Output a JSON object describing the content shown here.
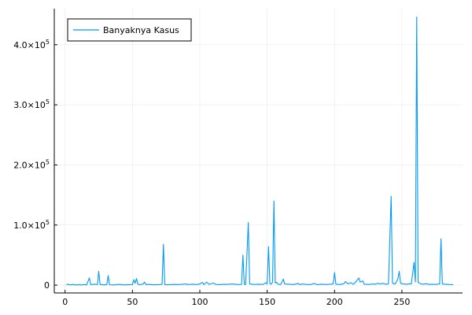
{
  "chart_data": {
    "type": "line",
    "xlim": [
      -8,
      295
    ],
    "ylim": [
      -13000,
      460000
    ],
    "grid": true,
    "legend_position": "top-left",
    "x_ticks": [
      0,
      50,
      100,
      150,
      200,
      250
    ],
    "x_tick_labels": [
      "0",
      "50",
      "100",
      "150",
      "200",
      "250"
    ],
    "y_ticks": [
      0,
      100000,
      200000,
      300000,
      400000
    ],
    "y_tick_labels": [
      {
        "mantissa": "0",
        "exponent": ""
      },
      {
        "mantissa": "1.0×10",
        "exponent": "5"
      },
      {
        "mantissa": "2.0×10",
        "exponent": "5"
      },
      {
        "mantissa": "3.0×10",
        "exponent": "5"
      },
      {
        "mantissa": "4.0×10",
        "exponent": "5"
      }
    ],
    "series": [
      {
        "name": "Banyaknya Kasus",
        "color": "#009af9",
        "points": [
          [
            1,
            500
          ],
          [
            2,
            1500
          ],
          [
            4,
            300
          ],
          [
            6,
            1200
          ],
          [
            8,
            200
          ],
          [
            10,
            800
          ],
          [
            12,
            400
          ],
          [
            14,
            1000
          ],
          [
            16,
            300
          ],
          [
            18,
            12000
          ],
          [
            19,
            800
          ],
          [
            22,
            1500
          ],
          [
            24,
            900
          ],
          [
            25,
            23000
          ],
          [
            26,
            1200
          ],
          [
            28,
            500
          ],
          [
            30,
            800
          ],
          [
            31,
            700
          ],
          [
            32,
            16000
          ],
          [
            33,
            600
          ],
          [
            36,
            400
          ],
          [
            40,
            1200
          ],
          [
            44,
            300
          ],
          [
            48,
            800
          ],
          [
            50,
            1000
          ],
          [
            51,
            9000
          ],
          [
            52,
            3000
          ],
          [
            53,
            11000
          ],
          [
            54,
            1500
          ],
          [
            56,
            800
          ],
          [
            58,
            2000
          ],
          [
            59,
            5000
          ],
          [
            60,
            1000
          ],
          [
            63,
            1200
          ],
          [
            66,
            500
          ],
          [
            70,
            800
          ],
          [
            72,
            1500
          ],
          [
            73,
            68000
          ],
          [
            74,
            1000
          ],
          [
            76,
            500
          ],
          [
            80,
            1200
          ],
          [
            85,
            1000
          ],
          [
            90,
            2000
          ],
          [
            91,
            800
          ],
          [
            94,
            1500
          ],
          [
            98,
            1000
          ],
          [
            100,
            2000
          ],
          [
            102,
            4500
          ],
          [
            103,
            800
          ],
          [
            105,
            5000
          ],
          [
            107,
            1200
          ],
          [
            110,
            3500
          ],
          [
            112,
            1000
          ],
          [
            115,
            800
          ],
          [
            118,
            1500
          ],
          [
            120,
            1200
          ],
          [
            124,
            2000
          ],
          [
            128,
            1000
          ],
          [
            131,
            1200
          ],
          [
            132,
            50000
          ],
          [
            133,
            1500
          ],
          [
            134,
            900
          ],
          [
            136,
            104000
          ],
          [
            137,
            2000
          ],
          [
            140,
            1200
          ],
          [
            144,
            1500
          ],
          [
            147,
            1200
          ],
          [
            149,
            4000
          ],
          [
            150,
            2000
          ],
          [
            151,
            64000
          ],
          [
            152,
            2500
          ],
          [
            153,
            1500
          ],
          [
            154,
            5000
          ],
          [
            155,
            140000
          ],
          [
            156,
            3500
          ],
          [
            157,
            5000
          ],
          [
            158,
            1500
          ],
          [
            160,
            1000
          ],
          [
            162,
            10000
          ],
          [
            163,
            2000
          ],
          [
            166,
            1500
          ],
          [
            170,
            1000
          ],
          [
            173,
            3000
          ],
          [
            174,
            800
          ],
          [
            176,
            2000
          ],
          [
            179,
            1200
          ],
          [
            182,
            800
          ],
          [
            185,
            3000
          ],
          [
            187,
            800
          ],
          [
            190,
            1500
          ],
          [
            194,
            1200
          ],
          [
            197,
            1500
          ],
          [
            199,
            2000
          ],
          [
            200,
            21000
          ],
          [
            201,
            1500
          ],
          [
            204,
            1000
          ],
          [
            207,
            2500
          ],
          [
            208,
            6000
          ],
          [
            210,
            2000
          ],
          [
            212,
            4000
          ],
          [
            214,
            1500
          ],
          [
            216,
            6000
          ],
          [
            218,
            12000
          ],
          [
            219,
            5000
          ],
          [
            221,
            7000
          ],
          [
            222,
            1500
          ],
          [
            226,
            1200
          ],
          [
            228,
            2000
          ],
          [
            230,
            1500
          ],
          [
            232,
            3000
          ],
          [
            234,
            2000
          ],
          [
            236,
            3000
          ],
          [
            238,
            1500
          ],
          [
            240,
            2000
          ],
          [
            242,
            148000
          ],
          [
            243,
            3000
          ],
          [
            245,
            2000
          ],
          [
            247,
            10000
          ],
          [
            248,
            23000
          ],
          [
            249,
            3000
          ],
          [
            251,
            2000
          ],
          [
            254,
            1500
          ],
          [
            256,
            2500
          ],
          [
            257,
            2000
          ],
          [
            259,
            38000
          ],
          [
            260,
            5000
          ],
          [
            261,
            446000
          ],
          [
            262,
            5000
          ],
          [
            264,
            2000
          ],
          [
            266,
            1500
          ],
          [
            268,
            2500
          ],
          [
            270,
            1200
          ],
          [
            272,
            1500
          ],
          [
            275,
            1200
          ],
          [
            278,
            2000
          ],
          [
            279,
            77000
          ],
          [
            280,
            2000
          ],
          [
            282,
            1500
          ],
          [
            285,
            1000
          ],
          [
            288,
            800
          ]
        ]
      }
    ]
  }
}
